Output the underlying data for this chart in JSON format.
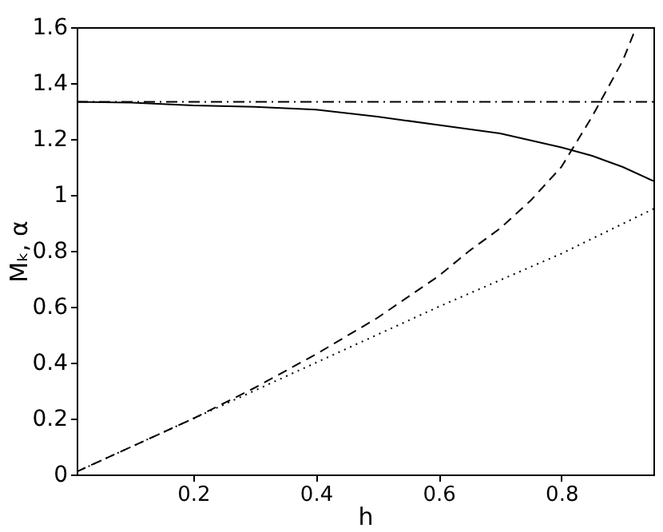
{
  "chart_data": {
    "type": "line",
    "xlabel": "h",
    "ylabel": "Mₖ, α",
    "xlim": [
      0.01,
      0.95
    ],
    "ylim": [
      0,
      1.6
    ],
    "xticks": [
      0.2,
      0.4,
      0.6,
      0.8
    ],
    "yticks": [
      0,
      0.2,
      0.4,
      0.6,
      0.8,
      1,
      1.2,
      1.4,
      1.6
    ],
    "marker": "none",
    "series": [
      {
        "color": "#000000",
        "line_style": "solid",
        "x": [
          0.01,
          0.1,
          0.2,
          0.3,
          0.4,
          0.5,
          0.6,
          0.7,
          0.8,
          0.85,
          0.9,
          0.95
        ],
        "values": [
          1.333,
          1.33,
          1.32,
          1.315,
          1.305,
          1.28,
          1.25,
          1.22,
          1.17,
          1.14,
          1.1,
          1.05
        ]
      },
      {
        "color": "#000000",
        "line_style": "dashdot",
        "x": [
          0.01,
          0.95
        ],
        "values": [
          1.333,
          1.333
        ]
      },
      {
        "color": "#000000",
        "line_style": "dashed",
        "x": [
          0.01,
          0.1,
          0.2,
          0.3,
          0.4,
          0.5,
          0.6,
          0.65,
          0.7,
          0.75,
          0.8,
          0.85,
          0.9,
          0.922
        ],
        "values": [
          0.01,
          0.1,
          0.2,
          0.31,
          0.43,
          0.56,
          0.71,
          0.8,
          0.88,
          0.98,
          1.1,
          1.28,
          1.48,
          1.6
        ]
      },
      {
        "color": "#000000",
        "line_style": "dotted",
        "x": [
          0.01,
          0.2,
          0.4,
          0.6,
          0.8,
          0.95
        ],
        "values": [
          0.01,
          0.2,
          0.4,
          0.6,
          0.79,
          0.95
        ]
      }
    ]
  }
}
